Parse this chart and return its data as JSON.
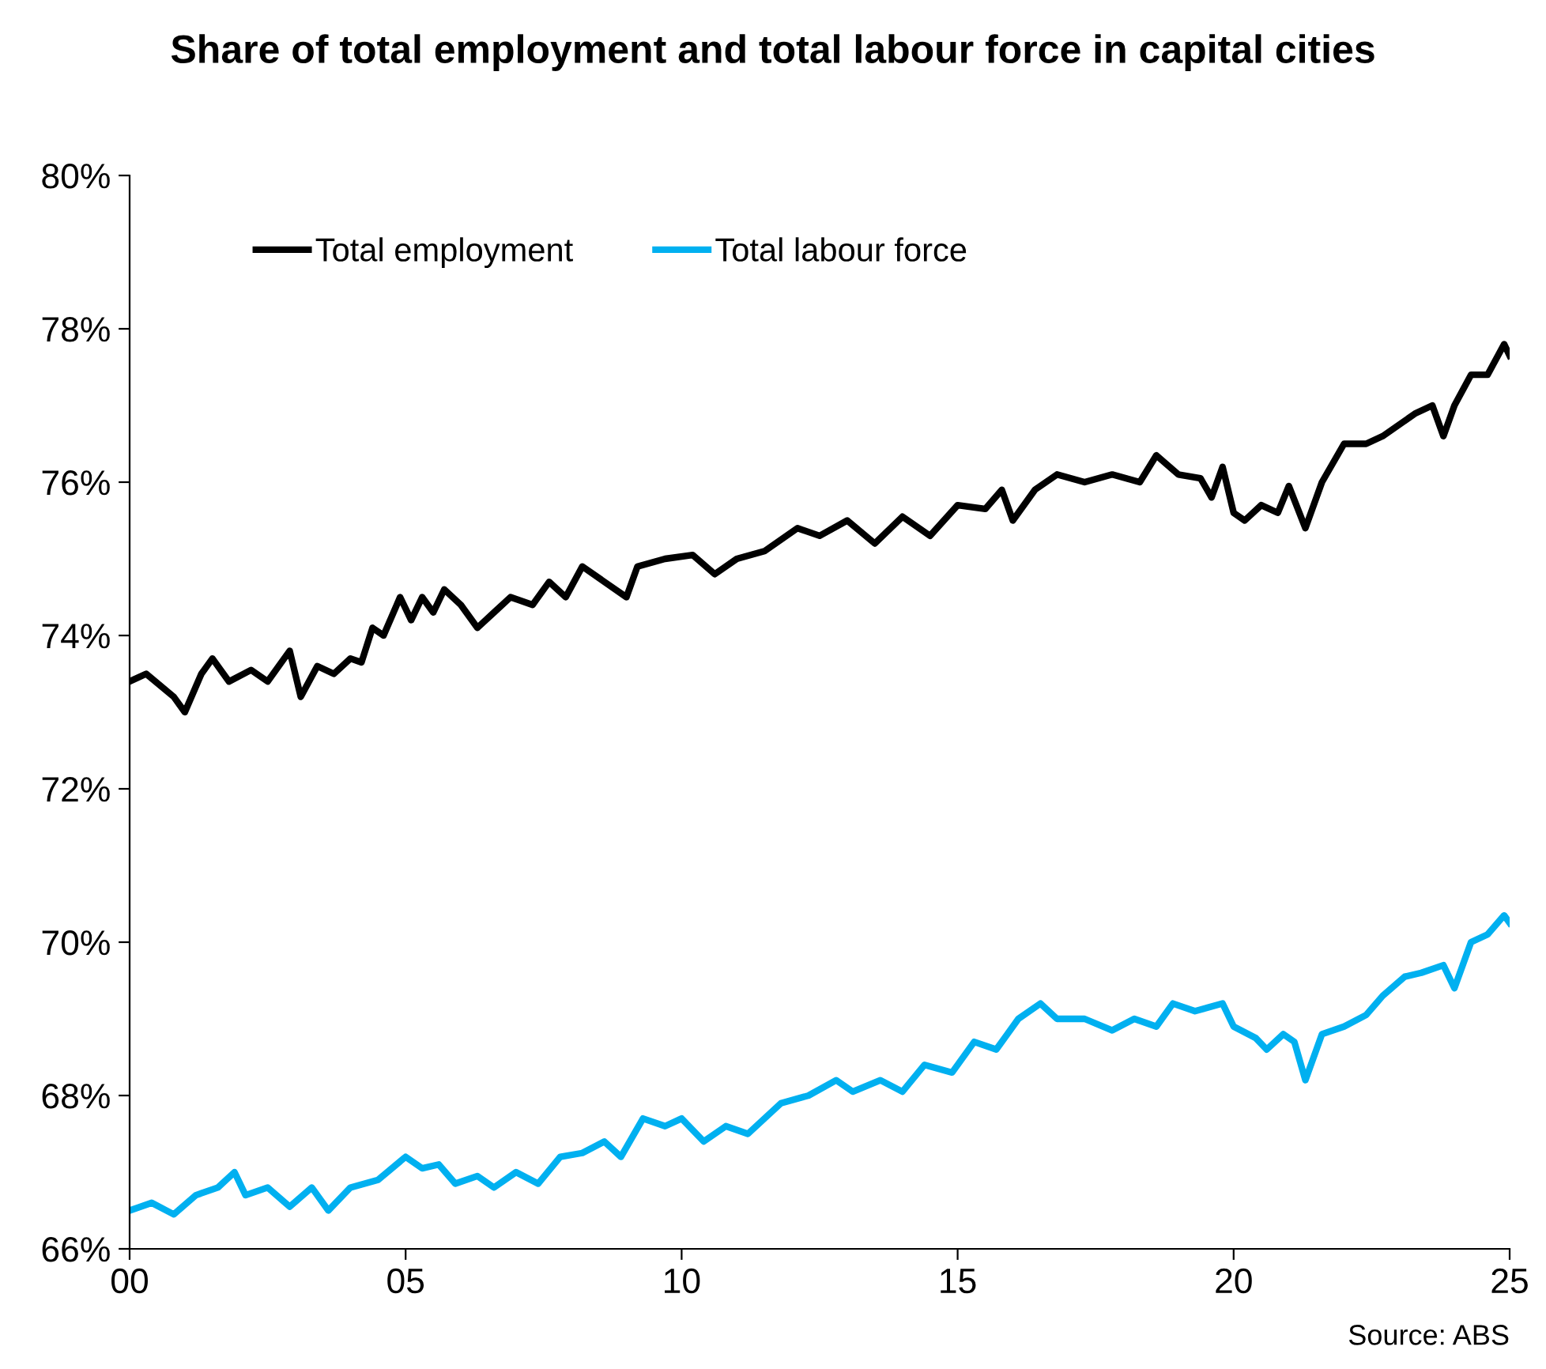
{
  "chart_data": {
    "type": "line",
    "title": "Share of total employment and total labour force in capital cities",
    "annotations": [
      "Source: ABS"
    ],
    "x": [
      0,
      0.3,
      0.8,
      1.0,
      1.3,
      1.5,
      1.8,
      2.2,
      2.5,
      2.9,
      3.1,
      3.4,
      3.7,
      4.0,
      4.2,
      4.4,
      4.6,
      4.9,
      5.1,
      5.3,
      5.5,
      5.7,
      6.0,
      6.3,
      6.6,
      6.9,
      7.3,
      7.6,
      7.9,
      8.2,
      8.6,
      9.0,
      9.2,
      9.7,
      10.2,
      10.6,
      11.0,
      11.5,
      12.1,
      12.5,
      13.0,
      13.5,
      14.0,
      14.5,
      15.0,
      15.5,
      15.8,
      16.0,
      16.4,
      16.8,
      17.3,
      17.8,
      18.3,
      18.6,
      19.0,
      19.4,
      19.6,
      19.8,
      20.0,
      20.2,
      20.5,
      20.8,
      21.0,
      21.3,
      21.6,
      22.0,
      22.4,
      22.7,
      23.3,
      23.6,
      23.8,
      24.0,
      24.3,
      24.6,
      24.9,
      25.0
    ],
    "series": [
      {
        "name": "Total employment",
        "color": "#000000",
        "values": [
          73.4,
          73.5,
          73.2,
          73.0,
          73.5,
          73.7,
          73.4,
          73.55,
          73.4,
          73.8,
          73.2,
          73.6,
          73.5,
          73.7,
          73.65,
          74.1,
          74.0,
          74.5,
          74.2,
          74.5,
          74.3,
          74.6,
          74.4,
          74.1,
          74.3,
          74.5,
          74.4,
          74.7,
          74.5,
          74.9,
          74.7,
          74.5,
          74.9,
          75.0,
          75.05,
          74.8,
          75.0,
          75.1,
          75.4,
          75.3,
          75.5,
          75.2,
          75.55,
          75.3,
          75.7,
          75.65,
          75.9,
          75.5,
          75.9,
          76.1,
          76.0,
          76.1,
          76.0,
          76.35,
          76.1,
          76.05,
          75.8,
          76.2,
          75.6,
          75.5,
          75.7,
          75.6,
          75.95,
          75.4,
          76.0,
          76.5,
          76.5,
          76.6,
          76.9,
          77.0,
          76.6,
          77.0,
          77.4,
          77.4,
          77.8,
          77.65
        ]
      },
      {
        "name": "Total labour force",
        "color": "#00b0f0",
        "x": [
          0,
          0.4,
          0.8,
          1.2,
          1.6,
          1.9,
          2.1,
          2.5,
          2.9,
          3.3,
          3.6,
          4.0,
          4.5,
          5.0,
          5.3,
          5.6,
          5.9,
          6.3,
          6.6,
          7.0,
          7.4,
          7.8,
          8.2,
          8.6,
          8.9,
          9.3,
          9.7,
          10.0,
          10.4,
          10.8,
          11.2,
          11.8,
          12.3,
          12.8,
          13.1,
          13.6,
          14.0,
          14.4,
          14.9,
          15.3,
          15.7,
          16.1,
          16.5,
          16.8,
          17.3,
          17.8,
          18.2,
          18.6,
          18.9,
          19.3,
          19.8,
          20.0,
          20.4,
          20.6,
          20.9,
          21.1,
          21.3,
          21.6,
          22.0,
          22.4,
          22.7,
          23.1,
          23.4,
          23.8,
          24.0,
          24.3,
          24.6,
          24.9,
          25.0
        ],
        "values": [
          66.5,
          66.6,
          66.45,
          66.7,
          66.8,
          67.0,
          66.7,
          66.8,
          66.55,
          66.8,
          66.5,
          66.8,
          66.9,
          67.2,
          67.05,
          67.1,
          66.85,
          66.95,
          66.8,
          67.0,
          66.85,
          67.2,
          67.25,
          67.4,
          67.2,
          67.7,
          67.6,
          67.7,
          67.4,
          67.6,
          67.5,
          67.9,
          68.0,
          68.2,
          68.05,
          68.2,
          68.05,
          68.4,
          68.3,
          68.7,
          68.6,
          69.0,
          69.2,
          69.0,
          69.0,
          68.85,
          69.0,
          68.9,
          69.2,
          69.1,
          69.2,
          68.9,
          68.75,
          68.6,
          68.8,
          68.7,
          68.2,
          68.8,
          68.9,
          69.05,
          69.3,
          69.55,
          69.6,
          69.7,
          69.4,
          70.0,
          70.1,
          70.35,
          70.25
        ]
      }
    ],
    "xlim": [
      0,
      25
    ],
    "xticks": [
      {
        "value": 0,
        "label": "00"
      },
      {
        "value": 5,
        "label": "05"
      },
      10,
      15,
      20,
      25
    ],
    "ylim": [
      66,
      80
    ],
    "yticks": [
      {
        "value": 66,
        "label": "66%"
      },
      {
        "value": 68,
        "label": "68%"
      },
      {
        "value": 70,
        "label": "70%"
      },
      {
        "value": 72,
        "label": "72%"
      },
      {
        "value": 74,
        "label": "74%"
      },
      {
        "value": 76,
        "label": "76%"
      },
      {
        "value": 78,
        "label": "78%"
      },
      {
        "value": 80,
        "label": "80%"
      }
    ],
    "grid": false,
    "legend": "top left",
    "marker": "none",
    "line_style": "solid"
  }
}
